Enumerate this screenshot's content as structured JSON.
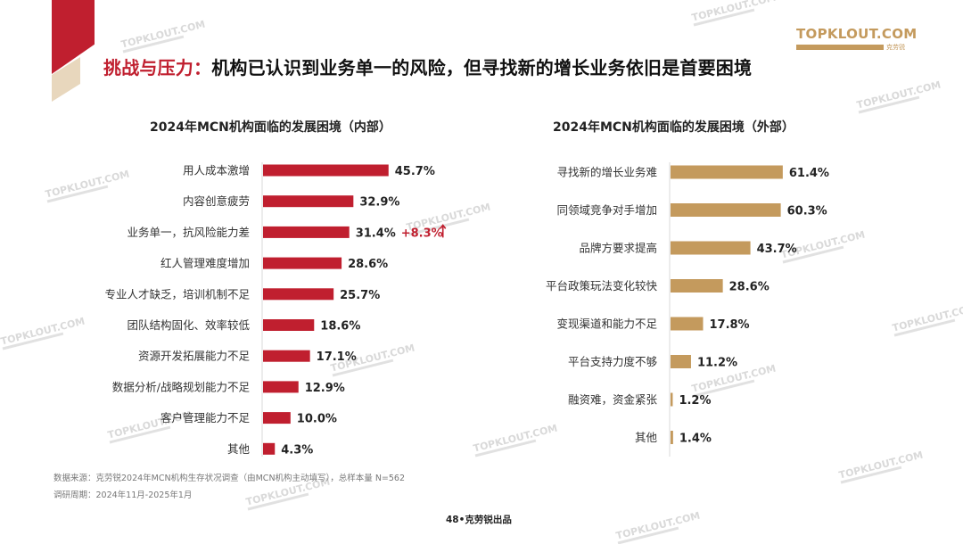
{
  "header": {
    "title_highlight": "挑战与压力：",
    "title_rest": "机构已认识到业务单一的风险，但寻找新的增长业务依旧是首要困境",
    "logo_text": "TOPKLOUT.COM",
    "logo_cn": "克劳锐",
    "watermark": "TOPKLOUT.COM"
  },
  "colors": {
    "accent_red": "#c01f2f",
    "accent_tan": "#c49a5d"
  },
  "chart_data": [
    {
      "type": "bar",
      "orientation": "horizontal",
      "title": "2024年MCN机构面临的发展困境（内部）",
      "categories": [
        "用人成本激增",
        "内容创意疲劳",
        "业务单一，抗风险能力差",
        "红人管理难度增加",
        "专业人才缺乏，培训机制不足",
        "团队结构固化、效率较低",
        "资源开发拓展能力不足",
        "数据分析/战略规划能力不足",
        "客户管理能力不足",
        "其他"
      ],
      "values": [
        45.7,
        32.9,
        31.4,
        28.6,
        25.7,
        18.6,
        17.1,
        12.9,
        10.0,
        4.3
      ],
      "value_labels": [
        "45.7%",
        "32.9%",
        "31.4%",
        "28.6%",
        "25.7%",
        "18.6%",
        "17.1%",
        "12.9%",
        "10.0%",
        "4.3%"
      ],
      "annotation": {
        "category": "业务单一，抗风险能力差",
        "text": "+8.3%",
        "icon": "arrow-up-icon"
      },
      "unit": "%",
      "color": "#c01f2f"
    },
    {
      "type": "bar",
      "orientation": "horizontal",
      "title": "2024年MCN机构面临的发展困境（外部）",
      "categories": [
        "寻找新的增长业务难",
        "同领域竞争对手增加",
        "品牌方要求提高",
        "平台政策玩法变化较快",
        "变现渠道和能力不足",
        "平台支持力度不够",
        "融资难，资金紧张",
        "其他"
      ],
      "values": [
        61.4,
        60.3,
        43.7,
        28.6,
        17.8,
        11.2,
        1.2,
        1.4
      ],
      "value_labels": [
        "61.4%",
        "60.3%",
        "43.7%",
        "28.6%",
        "17.8%",
        "11.2%",
        "1.2%",
        "1.4%"
      ],
      "unit": "%",
      "color": "#c49a5d"
    }
  ],
  "footer": {
    "source": "数据来源：克劳锐2024年MCN机构生存状况调查（由MCN机构主动填写），总样本量 N=562",
    "period": "调研周期：2024年11月-2025年1月",
    "page": "48•克劳锐出品"
  }
}
